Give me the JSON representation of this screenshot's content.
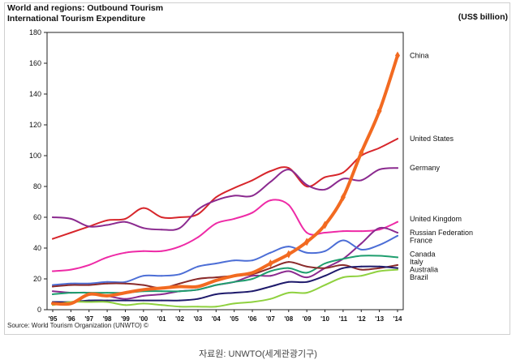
{
  "header": {
    "title_line1": "World and regions: Outbound Tourism",
    "title_line2": "International Tourism Expenditure",
    "unit": "(US$ billion)"
  },
  "source": "Source: World Tourism Organization (UNWTO) ©",
  "caption": "자료원: UNWTO(세계관광기구)",
  "chart_data": {
    "type": "line",
    "title": "World and regions: Outbound Tourism — International Tourism Expenditure",
    "ylabel": "(US$ billion)",
    "xlabel": "",
    "ylim": [
      0,
      180
    ],
    "yticks": [
      0,
      20,
      40,
      60,
      80,
      100,
      120,
      140,
      160,
      180
    ],
    "grid": false,
    "x": [
      "'95",
      "'96",
      "'97",
      "'98",
      "'99",
      "'00",
      "'01",
      "'02",
      "'03",
      "'04",
      "'05",
      "'06",
      "'07",
      "'08",
      "'09",
      "'10",
      "'11",
      "'12",
      "'13",
      "'14"
    ],
    "series": [
      {
        "name": "China",
        "color": "#f26a21",
        "values": [
          4,
          4,
          10,
          9,
          11,
          13,
          14,
          15,
          15,
          19,
          22,
          24,
          30,
          36,
          44,
          55,
          73,
          102,
          129,
          165
        ]
      },
      {
        "name": "United States",
        "color": "#d7262b",
        "values": [
          46,
          50,
          54,
          58,
          59,
          66,
          60,
          60,
          62,
          73,
          79,
          84,
          90,
          92,
          80,
          86,
          89,
          100,
          105,
          111
        ]
      },
      {
        "name": "Germany",
        "color": "#8b2a8f",
        "values": [
          60,
          59,
          54,
          55,
          57,
          53,
          52,
          53,
          65,
          71,
          74,
          74,
          83,
          91,
          81,
          78,
          85,
          84,
          91,
          92
        ]
      },
      {
        "name": "United Kingdom",
        "color": "#ee2aa6",
        "values": [
          25,
          26,
          29,
          34,
          37,
          38,
          38,
          41,
          47,
          56,
          59,
          63,
          71,
          68,
          50,
          50,
          51,
          51,
          52,
          57
        ]
      },
      {
        "name": "Russian Federation",
        "color": "#8b2a8f",
        "values": [
          12,
          11,
          11,
          9,
          7,
          9,
          10,
          12,
          13,
          16,
          18,
          22,
          22,
          25,
          21,
          27,
          33,
          43,
          53,
          50
        ]
      },
      {
        "name": "France",
        "color": "#4c6ed6",
        "values": [
          16,
          17,
          17,
          18,
          18,
          22,
          22,
          23,
          28,
          30,
          32,
          32,
          37,
          41,
          37,
          38,
          45,
          39,
          42,
          48
        ]
      },
      {
        "name": "Canada",
        "color": "#1f9e6e",
        "values": [
          10,
          11,
          11,
          11,
          11,
          12,
          12,
          12,
          13,
          16,
          18,
          20,
          25,
          27,
          24,
          30,
          33,
          35,
          35,
          34
        ]
      },
      {
        "name": "Italy",
        "color": "#8a2b2b",
        "values": [
          15,
          16,
          16,
          17,
          17,
          16,
          14,
          17,
          20,
          21,
          22,
          23,
          27,
          31,
          28,
          27,
          29,
          26,
          27,
          29
        ]
      },
      {
        "name": "Australia",
        "color": "#1e1a6b",
        "values": [
          5,
          5,
          6,
          6,
          6,
          6,
          6,
          6,
          7,
          10,
          11,
          12,
          15,
          18,
          18,
          22,
          27,
          28,
          28,
          27
        ]
      },
      {
        "name": "Brazil",
        "color": "#8fd13f",
        "values": [
          3,
          5,
          5,
          5,
          3,
          4,
          3,
          2,
          2,
          2,
          4,
          5,
          7,
          11,
          11,
          16,
          21,
          22,
          25,
          26
        ]
      }
    ]
  }
}
